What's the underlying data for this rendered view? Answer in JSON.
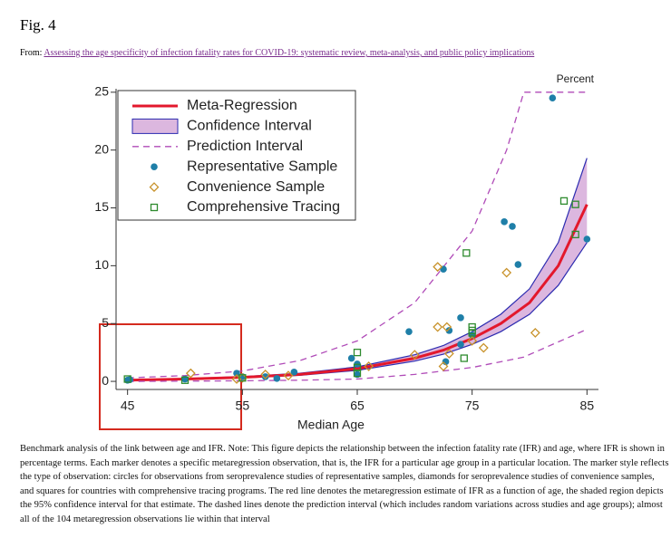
{
  "header": {
    "title": "Fig. 4",
    "from_label": "From:",
    "source_link": "Assessing the age specificity of infection fatality rates for COVID-19: systematic review, meta-analysis, and public policy implications"
  },
  "chart_data": {
    "type": "scatter",
    "y_unit_label": "Percent",
    "xlabel": "Median Age",
    "xlim": [
      44,
      86
    ],
    "ylim": [
      -0.7,
      25.3
    ],
    "xticks": [
      45,
      55,
      65,
      75,
      85
    ],
    "yticks": [
      0,
      5,
      10,
      15,
      20,
      25
    ],
    "series": [
      {
        "name": "Meta-Regression",
        "type": "line",
        "color": "#e3182c",
        "x": [
          45,
          50,
          55,
          60,
          65,
          70,
          72.5,
          75,
          77.5,
          80,
          82.5,
          85
        ],
        "values": [
          0.1,
          0.2,
          0.35,
          0.6,
          1.1,
          2.0,
          2.7,
          3.7,
          5.0,
          6.8,
          10.0,
          15.3
        ]
      },
      {
        "name": "Confidence Interval",
        "type": "band",
        "color": "#dcb7df",
        "edge_color": "#2b2bb0",
        "x": [
          45,
          50,
          55,
          60,
          65,
          70,
          72.5,
          75,
          77.5,
          80,
          82.5,
          85
        ],
        "lower": [
          0.08,
          0.16,
          0.3,
          0.52,
          0.95,
          1.75,
          2.35,
          3.2,
          4.3,
          5.8,
          8.3,
          12.0
        ],
        "upper": [
          0.13,
          0.24,
          0.41,
          0.7,
          1.25,
          2.3,
          3.1,
          4.3,
          5.8,
          8.0,
          12.0,
          19.3
        ]
      },
      {
        "name": "Prediction Interval",
        "type": "dashed",
        "color": "#b04bb8",
        "x": [
          45,
          50,
          55,
          60,
          65,
          70,
          75,
          78,
          79.5,
          85
        ],
        "lower": [
          0.0,
          0.02,
          0.05,
          0.1,
          0.2,
          0.6,
          1.2,
          1.8,
          2.1,
          4.5
        ],
        "upper": [
          0.3,
          0.5,
          0.9,
          1.8,
          3.5,
          6.8,
          13.0,
          20.0,
          25.0,
          25.0
        ]
      },
      {
        "name": "Representative Sample",
        "type": "scatter",
        "marker": "circle",
        "color": "#1f7fa8",
        "x": [
          45,
          45.2,
          50,
          54.5,
          55,
          57,
          58,
          59.5,
          64.5,
          65,
          65,
          69.5,
          72.5,
          73,
          74,
          74,
          75,
          77.8,
          78.5,
          79,
          82,
          85,
          72.7
        ],
        "values": [
          0.1,
          0.15,
          0.2,
          0.7,
          0.4,
          0.4,
          0.25,
          0.8,
          2.0,
          1.5,
          0.6,
          4.3,
          9.7,
          4.4,
          5.5,
          3.2,
          4.0,
          13.8,
          13.4,
          10.1,
          24.5,
          12.3,
          1.7
        ]
      },
      {
        "name": "Convenience Sample",
        "type": "scatter",
        "marker": "diamond",
        "color": "#c8922a",
        "x": [
          50.5,
          54.5,
          55,
          57,
          59,
          66,
          72,
          72,
          72.8,
          72.5,
          73,
          75,
          76,
          78,
          80.5,
          70
        ],
        "values": [
          0.7,
          0.2,
          0.3,
          0.6,
          0.5,
          1.3,
          9.9,
          4.7,
          4.7,
          1.3,
          2.4,
          3.5,
          2.9,
          9.4,
          4.2,
          2.3
        ]
      },
      {
        "name": "Comprehensive Tracing",
        "type": "scatter",
        "marker": "square",
        "color": "#2e8b2e",
        "x": [
          45,
          50,
          55,
          65,
          65,
          65,
          74.5,
          74.3,
          75,
          75,
          83,
          84,
          84,
          75
        ],
        "values": [
          0.2,
          0.1,
          0.3,
          2.5,
          1.2,
          0.7,
          11.1,
          2.0,
          4.7,
          4.4,
          15.6,
          15.3,
          12.7,
          4.2
        ]
      }
    ]
  },
  "caption": "Benchmark analysis of the link between age and IFR. Note: This figure depicts the relationship between the infection fatality rate (IFR) and age, where IFR is shown in percentage terms. Each marker denotes a specific metaregression observation, that is, the IFR for a particular age group in a particular location. The marker style reflects the type of observation: circles for observations from seroprevalence studies of representative samples, diamonds for seroprevalence studies of convenience samples, and squares for countries with comprehensive tracing programs. The red line denotes the metaregression estimate of IFR as a function of age, the shaded region depicts the 95% confidence interval for that estimate. The dashed lines denote the prediction interval (which includes random variations across studies and age groups); almost all of the 104 metaregression observations lie within that interval"
}
